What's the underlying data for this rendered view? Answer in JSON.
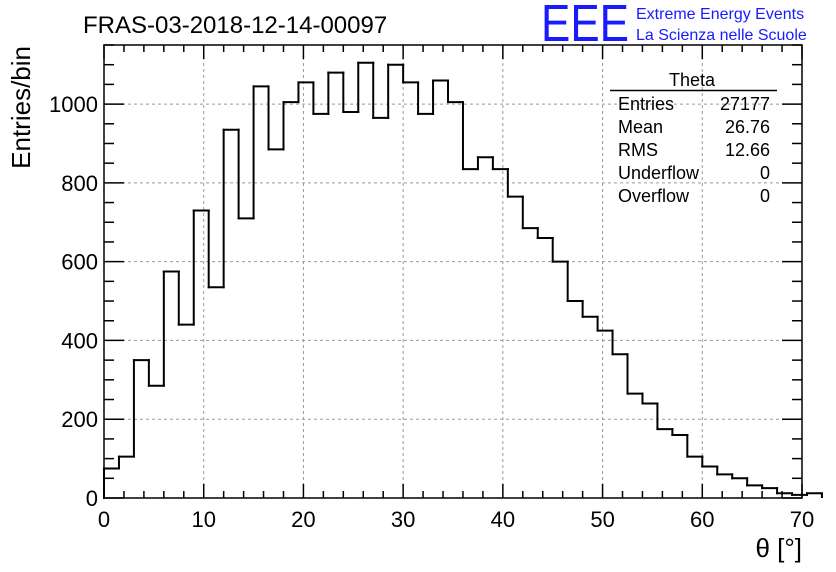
{
  "chart_data": {
    "type": "histogram",
    "title": "FRAS-03-2018-12-14-00097",
    "xlabel": "θ [°]",
    "ylabel": "Entries/bin",
    "xlim": [
      0,
      70
    ],
    "ylim": [
      0,
      1150
    ],
    "x_ticks": [
      0,
      10,
      20,
      30,
      40,
      50,
      60,
      70
    ],
    "y_ticks": [
      0,
      200,
      400,
      600,
      800,
      1000
    ],
    "grid": true,
    "bin_width": 1.5,
    "bin_edges_start": 0,
    "values": [
      75,
      105,
      350,
      285,
      575,
      440,
      730,
      535,
      935,
      710,
      1045,
      885,
      1005,
      1055,
      975,
      1080,
      980,
      1105,
      965,
      1100,
      1055,
      975,
      1060,
      1005,
      835,
      865,
      835,
      765,
      685,
      660,
      600,
      500,
      460,
      425,
      365,
      265,
      240,
      175,
      160,
      105,
      80,
      60,
      50,
      32,
      25,
      12,
      8,
      12
    ]
  },
  "stats_box": {
    "title": "Theta",
    "rows": [
      {
        "label": "Entries",
        "value": "27177"
      },
      {
        "label": "Mean",
        "value": "26.76"
      },
      {
        "label": "RMS",
        "value": "12.66"
      },
      {
        "label": "Underflow",
        "value": "0"
      },
      {
        "label": "Overflow",
        "value": "0"
      }
    ]
  },
  "logo": {
    "mark": "EEE",
    "line1": "Extreme Energy Events",
    "line2": "La Scienza nelle Scuole",
    "color": "#1a1aff"
  }
}
